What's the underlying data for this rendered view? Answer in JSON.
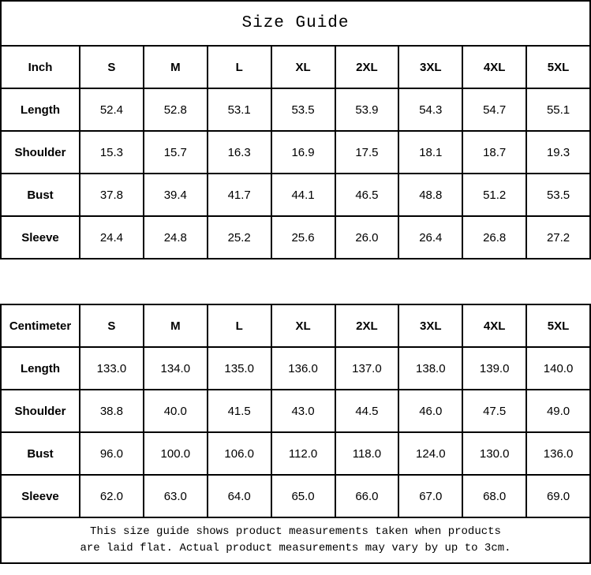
{
  "title": "Size Guide",
  "footer": {
    "line1": "This size guide shows product measurements taken when products",
    "line2": "are laid flat. Actual product measurements may vary by up to 3cm."
  },
  "colors": {
    "border": "#000000",
    "text": "#000000",
    "background": "#ffffff"
  },
  "chart_data": [
    {
      "type": "table",
      "title": "Size Guide",
      "unit": "Inch",
      "columns": [
        "S",
        "M",
        "L",
        "XL",
        "2XL",
        "3XL",
        "4XL",
        "5XL"
      ],
      "rows": [
        {
          "label": "Length",
          "values": [
            "52.4",
            "52.8",
            "53.1",
            "53.5",
            "53.9",
            "54.3",
            "54.7",
            "55.1"
          ]
        },
        {
          "label": "Shoulder",
          "values": [
            "15.3",
            "15.7",
            "16.3",
            "16.9",
            "17.5",
            "18.1",
            "18.7",
            "19.3"
          ]
        },
        {
          "label": "Bust",
          "values": [
            "37.8",
            "39.4",
            "41.7",
            "44.1",
            "46.5",
            "48.8",
            "51.2",
            "53.5"
          ]
        },
        {
          "label": "Sleeve",
          "values": [
            "24.4",
            "24.8",
            "25.2",
            "25.6",
            "26.0",
            "26.4",
            "26.8",
            "27.2"
          ]
        }
      ]
    },
    {
      "type": "table",
      "unit": "Centimeter",
      "columns": [
        "S",
        "M",
        "L",
        "XL",
        "2XL",
        "3XL",
        "4XL",
        "5XL"
      ],
      "rows": [
        {
          "label": "Length",
          "values": [
            "133.0",
            "134.0",
            "135.0",
            "136.0",
            "137.0",
            "138.0",
            "139.0",
            "140.0"
          ]
        },
        {
          "label": "Shoulder",
          "values": [
            "38.8",
            "40.0",
            "41.5",
            "43.0",
            "44.5",
            "46.0",
            "47.5",
            "49.0"
          ]
        },
        {
          "label": "Bust",
          "values": [
            "96.0",
            "100.0",
            "106.0",
            "112.0",
            "118.0",
            "124.0",
            "130.0",
            "136.0"
          ]
        },
        {
          "label": "Sleeve",
          "values": [
            "62.0",
            "63.0",
            "64.0",
            "65.0",
            "66.0",
            "67.0",
            "68.0",
            "69.0"
          ]
        }
      ]
    }
  ]
}
